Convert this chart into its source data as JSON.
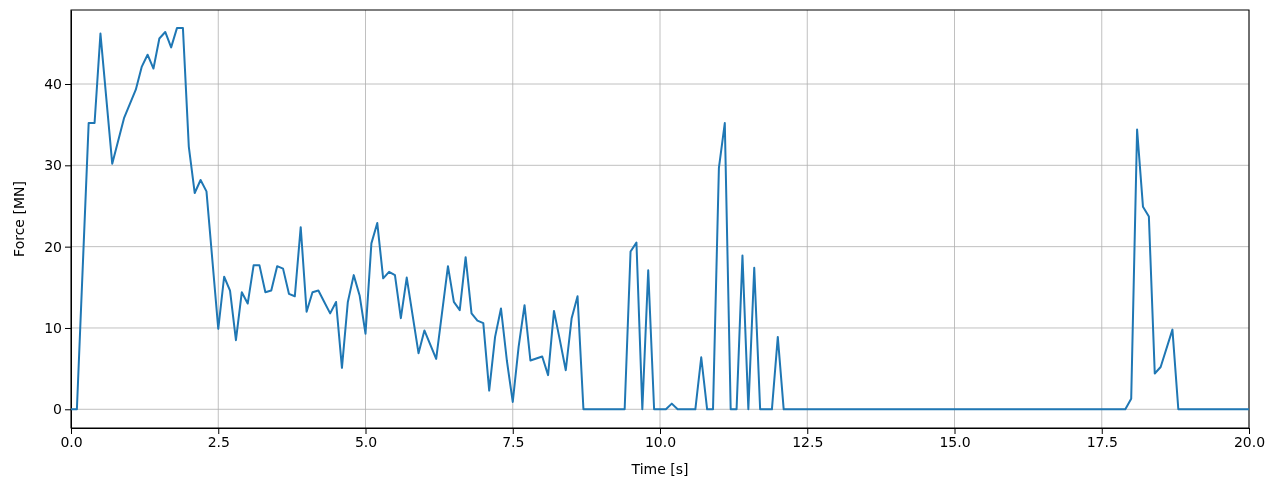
{
  "chart_data": {
    "type": "line",
    "xlabel": "Time [s]",
    "ylabel": "Force [MN]",
    "xlim": [
      0,
      20
    ],
    "ylim": [
      -2.3,
      49.1
    ],
    "xticks": [
      {
        "value": 0,
        "label": "0.0"
      },
      {
        "value": 2.5,
        "label": "2.5"
      },
      {
        "value": 5,
        "label": "5.0"
      },
      {
        "value": 7.5,
        "label": "7.5"
      },
      {
        "value": 10,
        "label": "10.0"
      },
      {
        "value": 12.5,
        "label": "12.5"
      },
      {
        "value": 15,
        "label": "15.0"
      },
      {
        "value": 17.5,
        "label": "17.5"
      },
      {
        "value": 20,
        "label": "20.0"
      }
    ],
    "yticks": [
      0,
      10,
      20,
      30,
      40
    ],
    "grid": true,
    "marker": "none",
    "line_style": "solid",
    "series": [
      {
        "color": "#1f77b4",
        "x": [
          0,
          0.1,
          0.3,
          0.4,
          0.5,
          0.7,
          0.9,
          1.1,
          1.2,
          1.3,
          1.4,
          1.5,
          1.6,
          1.7,
          1.8,
          1.9,
          2.0,
          2.1,
          2.2,
          2.3,
          2.5,
          2.6,
          2.7,
          2.8,
          2.9,
          3.0,
          3.1,
          3.2,
          3.3,
          3.4,
          3.5,
          3.6,
          3.7,
          3.8,
          3.9,
          4.0,
          4.1,
          4.2,
          4.3,
          4.4,
          4.5,
          4.6,
          4.7,
          4.8,
          4.9,
          5.0,
          5.1,
          5.2,
          5.3,
          5.4,
          5.5,
          5.6,
          5.7,
          5.9,
          6.0,
          6.2,
          6.4,
          6.5,
          6.6,
          6.7,
          6.8,
          6.9,
          7.0,
          7.1,
          7.2,
          7.3,
          7.4,
          7.5,
          7.6,
          7.7,
          7.8,
          8.0,
          8.1,
          8.2,
          8.3,
          8.4,
          8.5,
          8.6,
          8.7,
          9.4,
          9.5,
          9.6,
          9.7,
          9.8,
          9.9,
          10.1,
          10.2,
          10.3,
          10.6,
          10.7,
          10.8,
          10.9,
          11.0,
          11.1,
          11.2,
          11.3,
          11.4,
          11.5,
          11.6,
          11.7,
          11.9,
          12.0,
          12.1,
          17.9,
          18.0,
          18.1,
          18.2,
          18.3,
          18.4,
          18.5,
          18.7,
          18.8,
          20
        ],
        "values": [
          0,
          0,
          35.2,
          35.2,
          46.2,
          30.2,
          35.8,
          39.3,
          42.1,
          43.6,
          41.9,
          45.6,
          46.4,
          44.5,
          46.9,
          46.9,
          32.3,
          26.6,
          28.2,
          26.8,
          9.9,
          16.3,
          14.6,
          8.5,
          14.4,
          13.0,
          17.7,
          17.7,
          14.4,
          14.6,
          17.6,
          17.3,
          14.2,
          13.9,
          22.4,
          12.0,
          14.4,
          14.6,
          13.2,
          11.8,
          13.2,
          5.1,
          13.2,
          16.5,
          14.0,
          9.3,
          20.4,
          22.9,
          16.1,
          16.9,
          16.5,
          11.2,
          16.2,
          6.9,
          9.7,
          6.2,
          17.6,
          13.2,
          12.2,
          18.7,
          11.8,
          10.9,
          10.6,
          2.3,
          8.9,
          12.4,
          6.0,
          0.9,
          7.7,
          12.8,
          6.0,
          6.5,
          4.2,
          12.1,
          8.5,
          4.8,
          11.2,
          13.9,
          0,
          0,
          19.4,
          20.5,
          0,
          17.1,
          0,
          0,
          0.7,
          0,
          0,
          6.4,
          0,
          0,
          29.7,
          35.2,
          0,
          0,
          18.9,
          0,
          17.4,
          0,
          0,
          8.9,
          0,
          0,
          1.3,
          34.4,
          24.9,
          23.7,
          4.4,
          5.2,
          9.8,
          0,
          0
        ]
      }
    ]
  }
}
